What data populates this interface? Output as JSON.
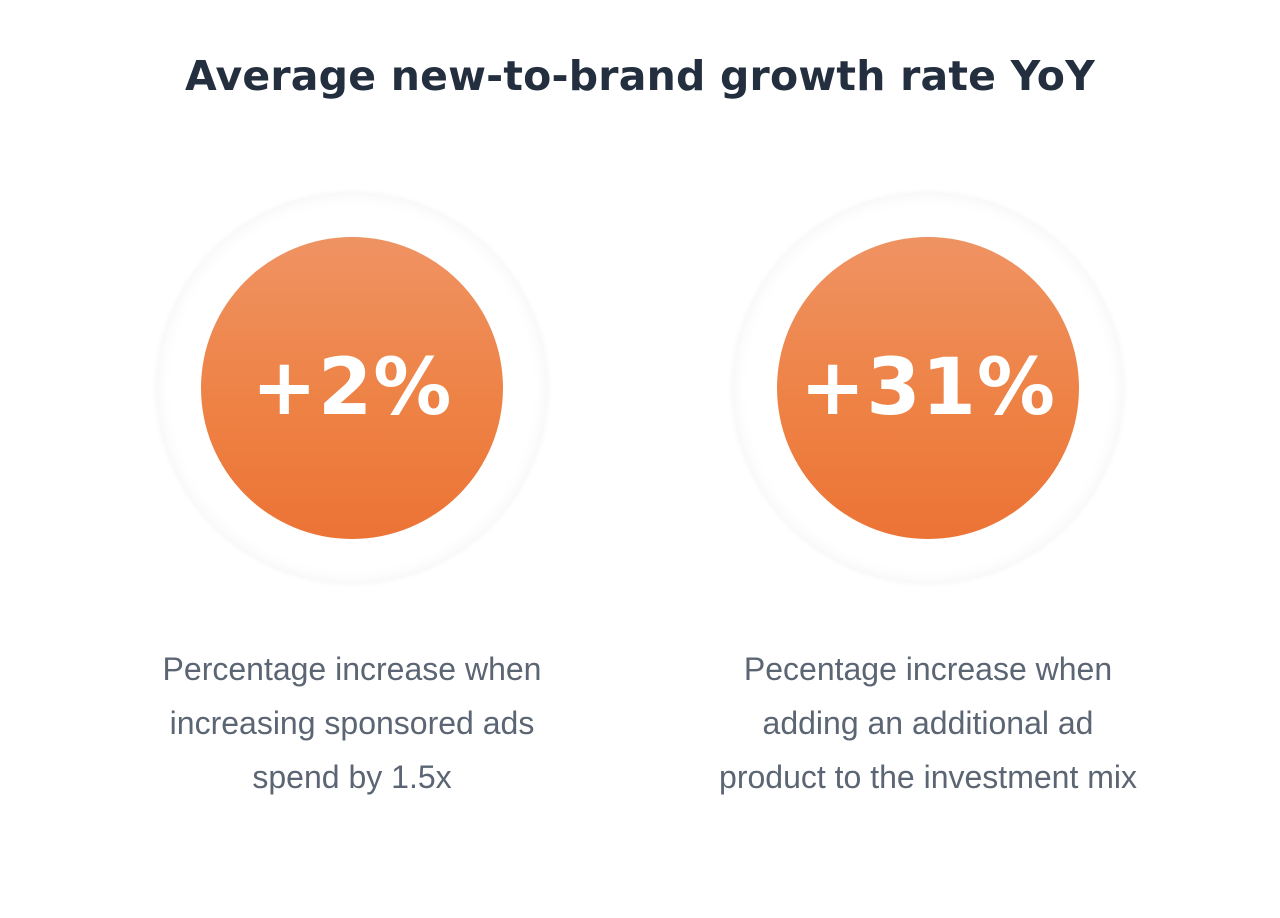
{
  "title": "Average new-to-brand growth rate YoY",
  "stats": [
    {
      "value": "+2%",
      "caption": "Percentage increase when increasing sponsored ads spend by 1.5x"
    },
    {
      "value": "+31%",
      "caption": "Pecentage increase when adding an additional ad product to the investment mix"
    }
  ],
  "colors": {
    "title": "#232f3e",
    "disc_top": "#ef9363",
    "disc_bottom": "#ec7335",
    "caption": "#5b6573"
  }
}
